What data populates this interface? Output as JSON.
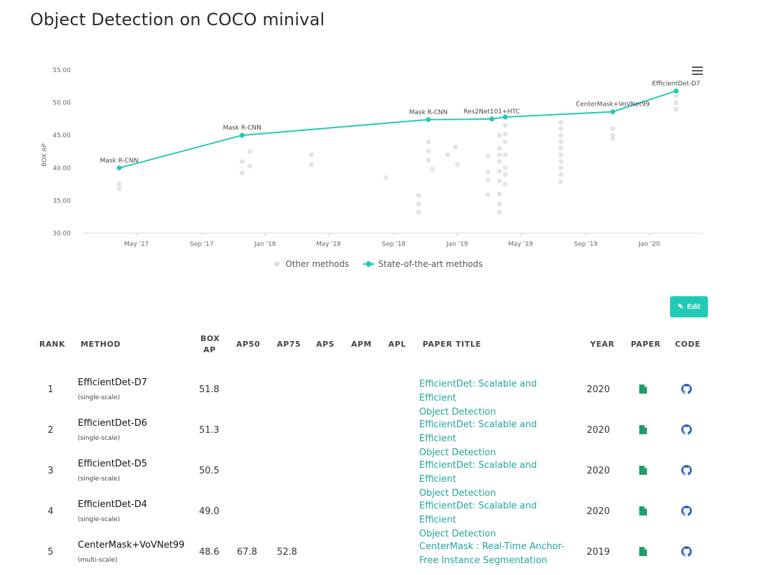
{
  "page": {
    "title": "Object Detection on COCO minival"
  },
  "chart_data": {
    "type": "line",
    "ylabel": "BOX AP",
    "xlabel": "",
    "ylim": [
      30,
      55
    ],
    "y_ticks": [
      "30.00",
      "35.00",
      "40.00",
      "45.00",
      "50.00",
      "55.00"
    ],
    "x_ticks": [
      "May '17",
      "Sep '17",
      "Jan '18",
      "May '18",
      "Sep '18",
      "Jan '19",
      "May '19",
      "Sep '19",
      "Jan '20"
    ],
    "x_range_months": [
      2017.25,
      2020.17
    ],
    "series": [
      {
        "name": "State-of-the-art methods",
        "points": [
          {
            "x": 2017.24,
            "y": 40.0,
            "label": "Mask R-CNN"
          },
          {
            "x": 2017.88,
            "y": 45.0,
            "label": "Mask R-CNN"
          },
          {
            "x": 2018.85,
            "y": 47.4,
            "label": "Mask R-CNN"
          },
          {
            "x": 2019.18,
            "y": 47.5,
            "label": "Res2Net101+HTC"
          },
          {
            "x": 2019.25,
            "y": 47.8,
            "label": ""
          },
          {
            "x": 2019.81,
            "y": 48.6,
            "label": "CenterMask+VoVNet99"
          },
          {
            "x": 2020.14,
            "y": 51.8,
            "label": "EfficientDet-D7"
          }
        ]
      },
      {
        "name": "Other methods",
        "points": [
          {
            "x": 2017.24,
            "y": 37.5
          },
          {
            "x": 2017.24,
            "y": 36.8
          },
          {
            "x": 2017.88,
            "y": 41.0
          },
          {
            "x": 2017.88,
            "y": 39.2
          },
          {
            "x": 2017.92,
            "y": 42.5
          },
          {
            "x": 2017.92,
            "y": 40.3
          },
          {
            "x": 2018.24,
            "y": 42.0
          },
          {
            "x": 2018.24,
            "y": 40.5
          },
          {
            "x": 2018.63,
            "y": 38.5
          },
          {
            "x": 2018.8,
            "y": 35.8
          },
          {
            "x": 2018.8,
            "y": 34.5
          },
          {
            "x": 2018.8,
            "y": 33.2
          },
          {
            "x": 2018.85,
            "y": 44.0
          },
          {
            "x": 2018.85,
            "y": 42.6
          },
          {
            "x": 2018.85,
            "y": 41.2
          },
          {
            "x": 2018.87,
            "y": 39.8
          },
          {
            "x": 2018.95,
            "y": 42.0
          },
          {
            "x": 2018.99,
            "y": 43.2
          },
          {
            "x": 2019.0,
            "y": 40.5
          },
          {
            "x": 2019.16,
            "y": 41.8
          },
          {
            "x": 2019.16,
            "y": 39.4
          },
          {
            "x": 2019.16,
            "y": 38.2
          },
          {
            "x": 2019.16,
            "y": 35.9
          },
          {
            "x": 2019.22,
            "y": 45.0
          },
          {
            "x": 2019.22,
            "y": 43.0
          },
          {
            "x": 2019.22,
            "y": 42.0
          },
          {
            "x": 2019.22,
            "y": 41.0
          },
          {
            "x": 2019.22,
            "y": 39.5
          },
          {
            "x": 2019.22,
            "y": 38.0
          },
          {
            "x": 2019.22,
            "y": 36.0
          },
          {
            "x": 2019.22,
            "y": 34.5
          },
          {
            "x": 2019.22,
            "y": 33.2
          },
          {
            "x": 2019.25,
            "y": 46.5
          },
          {
            "x": 2019.25,
            "y": 45.2
          },
          {
            "x": 2019.25,
            "y": 44.0
          },
          {
            "x": 2019.25,
            "y": 42.0
          },
          {
            "x": 2019.25,
            "y": 40.0
          },
          {
            "x": 2019.25,
            "y": 39.0
          },
          {
            "x": 2019.25,
            "y": 37.5
          },
          {
            "x": 2019.54,
            "y": 47.0
          },
          {
            "x": 2019.54,
            "y": 46.0
          },
          {
            "x": 2019.54,
            "y": 45.0
          },
          {
            "x": 2019.54,
            "y": 44.0
          },
          {
            "x": 2019.54,
            "y": 43.0
          },
          {
            "x": 2019.54,
            "y": 42.0
          },
          {
            "x": 2019.54,
            "y": 41.0
          },
          {
            "x": 2019.54,
            "y": 40.0
          },
          {
            "x": 2019.54,
            "y": 39.0
          },
          {
            "x": 2019.54,
            "y": 37.9
          },
          {
            "x": 2019.81,
            "y": 46.0
          },
          {
            "x": 2019.81,
            "y": 45.0
          },
          {
            "x": 2019.81,
            "y": 44.5
          },
          {
            "x": 2020.14,
            "y": 51.0
          },
          {
            "x": 2020.14,
            "y": 50.0
          },
          {
            "x": 2020.14,
            "y": 49.0
          }
        ]
      }
    ]
  },
  "legend": {
    "other": "Other methods",
    "sota": "State-of-the-art methods"
  },
  "toolbar": {
    "edit_label": "Edit",
    "edit_icon": "pencil-icon"
  },
  "table": {
    "headers": {
      "rank": "RANK",
      "method": "METHOD",
      "box_ap_1": "BOX",
      "box_ap_2": "AP",
      "ap50": "AP50",
      "ap75": "AP75",
      "aps": "APS",
      "apm": "APM",
      "apl": "APL",
      "paper_title": "PAPER TITLE",
      "year": "YEAR",
      "paper": "PAPER",
      "code": "CODE"
    },
    "rows": [
      {
        "rank": "1",
        "method": "EfficientDet-D7",
        "sub": "(single-scale)",
        "box_ap": "51.8",
        "ap50": "",
        "ap75": "",
        "title_1": "EfficientDet: Scalable and Efficient",
        "title_2": "Object Detection",
        "year": "2020"
      },
      {
        "rank": "2",
        "method": "EfficientDet-D6",
        "sub": "(single-scale)",
        "box_ap": "51.3",
        "ap50": "",
        "ap75": "",
        "title_1": "EfficientDet: Scalable and Efficient",
        "title_2": "Object Detection",
        "year": "2020"
      },
      {
        "rank": "3",
        "method": "EfficientDet-D5",
        "sub": "(single-scale)",
        "box_ap": "50.5",
        "ap50": "",
        "ap75": "",
        "title_1": "EfficientDet: Scalable and Efficient",
        "title_2": "Object Detection",
        "year": "2020"
      },
      {
        "rank": "4",
        "method": "EfficientDet-D4",
        "sub": "(single-scale)",
        "box_ap": "49.0",
        "ap50": "",
        "ap75": "",
        "title_1": "EfficientDet: Scalable and Efficient",
        "title_2": "Object Detection",
        "year": "2020"
      },
      {
        "rank": "5",
        "method": "CenterMask+VoVNet99",
        "sub": "(multi-scale)",
        "box_ap": "48.6",
        "ap50": "67.8",
        "ap75": "52.8",
        "title_1": "CenterMask : Real-Time Anchor-",
        "title_2": "Free Instance Segmentation",
        "year": "2019"
      }
    ]
  },
  "colors": {
    "accent": "#21cbb3",
    "link": "#21a695",
    "paper_icon": "#1f9d6b",
    "code_icon": "#2b5fc4"
  }
}
